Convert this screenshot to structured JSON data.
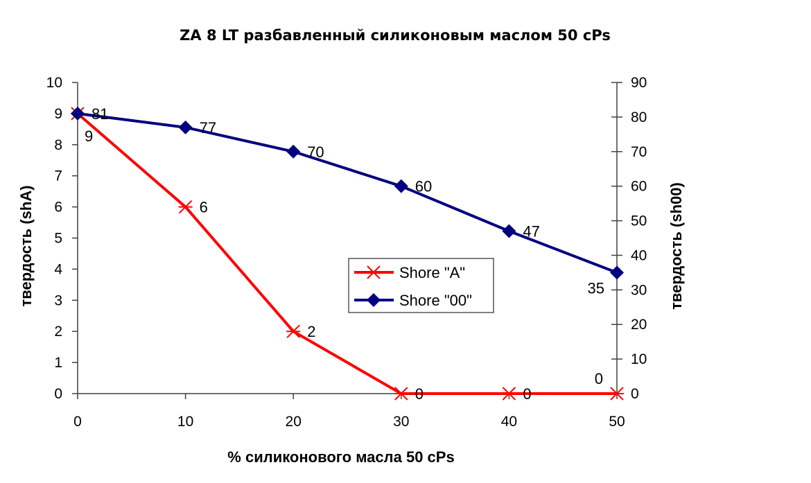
{
  "chart_data": {
    "type": "line",
    "title": "ZA 8 LT разбавленный силиконовым маслом 50 cPs",
    "xlabel": "% силиконового масла 50 cPs",
    "ylabel": "твердость  (shA)",
    "y2label": "твердость  (sh00)",
    "x": [
      0,
      10,
      20,
      30,
      40,
      50
    ],
    "xlim": [
      0,
      50
    ],
    "xticks": [
      "0",
      "10",
      "20",
      "30",
      "40",
      "50"
    ],
    "ylim": [
      0,
      10
    ],
    "yticks": [
      "0",
      "1",
      "2",
      "3",
      "4",
      "5",
      "6",
      "7",
      "8",
      "9",
      "10"
    ],
    "y2lim": [
      0,
      90
    ],
    "y2ticks": [
      "0",
      "10",
      "20",
      "30",
      "40",
      "50",
      "60",
      "70",
      "80",
      "90"
    ],
    "grid": false,
    "legend_position": "center-right",
    "series": [
      {
        "name": "Shore \"A\"",
        "axis": "left",
        "color": "#ff0000",
        "marker": "asterisk",
        "values": [
          9,
          6,
          2,
          0,
          0,
          0
        ],
        "labels": [
          "9",
          "6",
          "2",
          "0",
          "0",
          "0"
        ]
      },
      {
        "name": "Shore \"00\"",
        "axis": "right",
        "color": "#000080",
        "marker": "diamond",
        "values": [
          81,
          77,
          70,
          60,
          47,
          35
        ],
        "labels": [
          "81",
          "77",
          "70",
          "60",
          "47",
          "35"
        ]
      }
    ]
  }
}
